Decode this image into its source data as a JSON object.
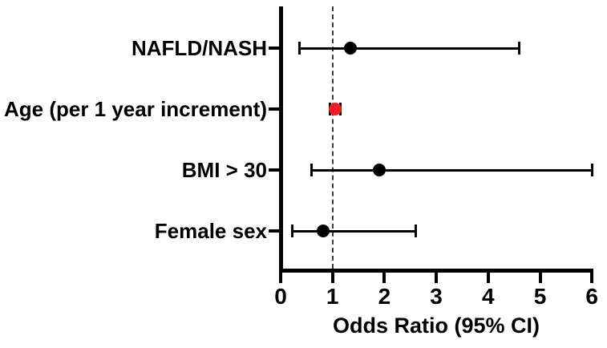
{
  "chart_data": {
    "type": "scatter",
    "subtype": "forest-plot",
    "title": "",
    "xlabel": "Odds Ratio (95% CI)",
    "ylabel": "",
    "xlim": [
      0,
      6
    ],
    "xticks": [
      0,
      1,
      2,
      3,
      4,
      5,
      6
    ],
    "reference_line_x": 1,
    "reference_line_style": "dashed",
    "grid": false,
    "legend": false,
    "categories": [
      "NAFLD/NASH",
      "Age (per 1 year increment)",
      "BMI > 30",
      "Female sex"
    ],
    "series": [
      {
        "name": "NAFLD/NASH",
        "odds_ratio": 1.35,
        "ci_low": 0.36,
        "ci_high": 4.6,
        "color": "#000000"
      },
      {
        "name": "Age (per 1 year increment)",
        "odds_ratio": 1.05,
        "ci_low": 0.95,
        "ci_high": 1.15,
        "color": "#ED1C24"
      },
      {
        "name": "BMI > 30",
        "odds_ratio": 1.9,
        "ci_low": 0.6,
        "ci_high": 6.0,
        "color": "#000000"
      },
      {
        "name": "Female sex",
        "odds_ratio": 0.82,
        "ci_low": 0.22,
        "ci_high": 2.6,
        "color": "#000000"
      }
    ],
    "colors": {
      "axis": "#000000",
      "highlight_marker": "#ED1C24",
      "default_marker": "#000000",
      "reference_line": "#3a3a3a"
    }
  }
}
